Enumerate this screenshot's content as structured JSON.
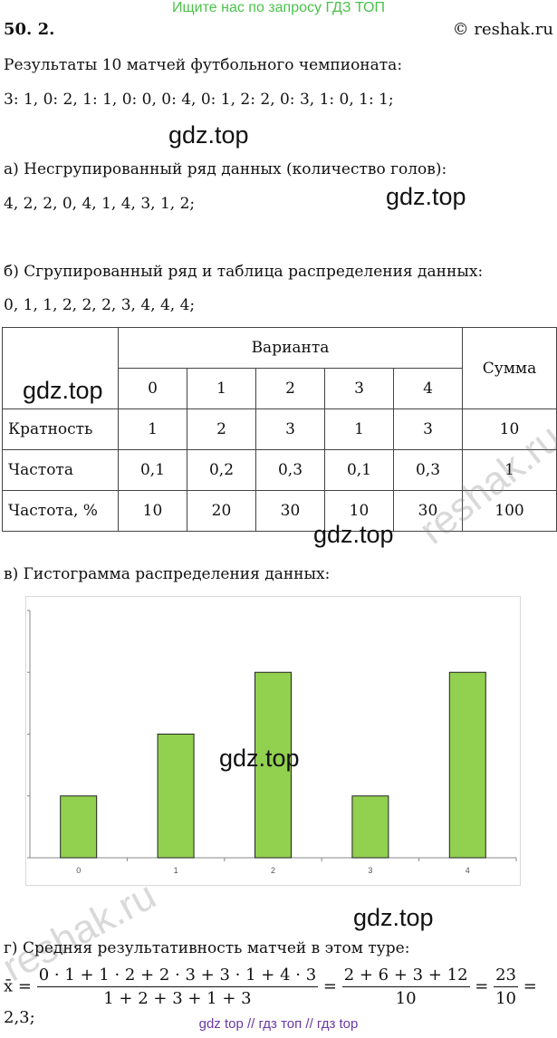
{
  "banner": "Ищите нас по запросу ГДЗ ТОП",
  "task_number": "50. 2.",
  "copyright": "© reshak.ru",
  "intro": "Результаты 10 матчей футбольного чемпионата:",
  "scores": "3: 1,   0: 2,   1: 1,   0: 0,   0: 4,   0: 1,   2: 2,   0: 3,   1: 0,   1: 1;",
  "part_a_title": "а) Несгрупированный ряд данных (количество голов):",
  "part_a_series": "4, 2, 2, 0, 4, 1, 4, 3, 1, 2;",
  "part_b_title": "б) Сгрупированный ряд и таблица распределения данных:",
  "part_b_series": "0, 1, 1, 2, 2, 2, 3, 4, 4, 4;",
  "table": {
    "header_variant": "Варианта",
    "header_sum": "Сумма",
    "variants": [
      "0",
      "1",
      "2",
      "3",
      "4"
    ],
    "rows": [
      {
        "label": "Кратность",
        "values": [
          "1",
          "2",
          "3",
          "1",
          "3"
        ],
        "sum": "10"
      },
      {
        "label": "Частота",
        "values": [
          "0,1",
          "0,2",
          "0,3",
          "0,1",
          "0,3"
        ],
        "sum": "1"
      },
      {
        "label": "Частота, %",
        "values": [
          "10",
          "20",
          "30",
          "10",
          "30"
        ],
        "sum": "100"
      }
    ]
  },
  "part_v_title": "в) Гистограмма распределения данных:",
  "chart_data": {
    "type": "bar",
    "categories": [
      "0",
      "1",
      "2",
      "3",
      "4"
    ],
    "values": [
      1,
      2,
      3,
      1,
      3
    ],
    "ylim": [
      0,
      4
    ],
    "y_ticks": [
      "0",
      "1",
      "2",
      "3",
      "4"
    ],
    "bar_color": "#92d050",
    "grid": false
  },
  "part_g_title": "г) Средняя результативность матчей в этом туре:",
  "formula": {
    "lhs": "x̄ =",
    "f1_num": "0 · 1 + 1 · 2 + 2 · 3 + 3 · 1 + 4 · 3",
    "f1_den": "1 + 2 + 3 + 1 + 3",
    "f2_num": "2 + 6 + 3 + 12",
    "f2_den": "10",
    "f3_num": "23",
    "f3_den": "10",
    "result": "= 2,3;"
  },
  "watermarks": [
    "gdz.top",
    "gdz.top",
    "gdz.top",
    "gdz.top",
    "gdz.top",
    "gdz.top"
  ],
  "reshak_wm": "reshak.ru",
  "footer": "gdz top  //  гдз топ  //  гдз top"
}
